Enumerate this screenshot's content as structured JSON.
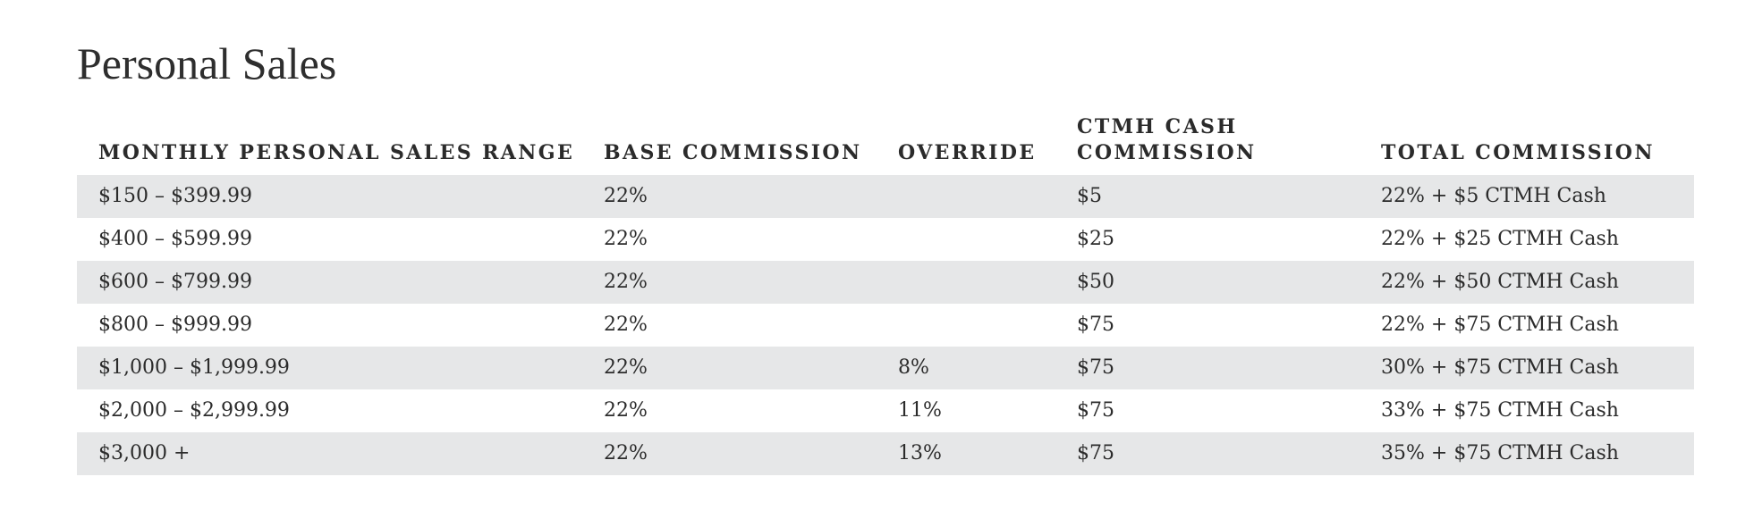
{
  "title": "Personal Sales",
  "columns": [
    "MONTHLY PERSONAL SALES RANGE",
    "BASE COMMISSION",
    "OVERRIDE",
    "CTMH CASH COMMISSION",
    "TOTAL COMMISSION"
  ],
  "rows": [
    {
      "range": "$150 – $399.99",
      "base": "22%",
      "override": "",
      "cash": "$5",
      "total": "22% + $5 CTMH Cash"
    },
    {
      "range": "$400 – $599.99",
      "base": "22%",
      "override": "",
      "cash": "$25",
      "total": "22% + $25 CTMH Cash"
    },
    {
      "range": "$600 – $799.99",
      "base": "22%",
      "override": "",
      "cash": "$50",
      "total": "22% + $50 CTMH Cash"
    },
    {
      "range": "$800 – $999.99",
      "base": "22%",
      "override": "",
      "cash": "$75",
      "total": "22% + $75 CTMH Cash"
    },
    {
      "range": "$1,000 – $1,999.99",
      "base": "22%",
      "override": "8%",
      "cash": "$75",
      "total": "30% + $75 CTMH Cash"
    },
    {
      "range": "$2,000 – $2,999.99",
      "base": "22%",
      "override": "11%",
      "cash": "$75",
      "total": "33% + $75 CTMH Cash"
    },
    {
      "range": "$3,000 +",
      "base": "22%",
      "override": "13%",
      "cash": "$75",
      "total": "35% + $75 CTMH Cash"
    }
  ],
  "colors": {
    "row_shade": "#e6e7e8",
    "text": "#2b2b2b"
  }
}
